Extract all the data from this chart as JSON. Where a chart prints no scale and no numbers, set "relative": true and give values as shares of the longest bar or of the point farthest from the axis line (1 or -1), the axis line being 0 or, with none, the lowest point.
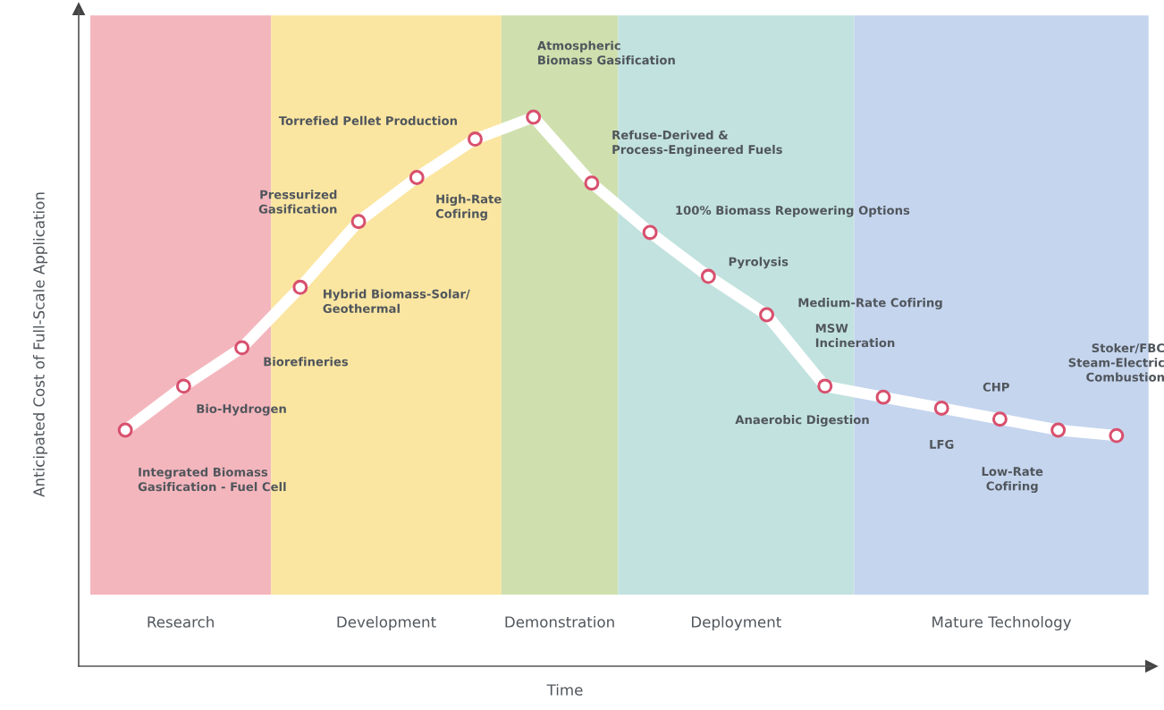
{
  "chart_data": {
    "type": "line",
    "relative": true,
    "xlabel": "Time",
    "ylabel": "Anticipated Cost of Full-Scale Application",
    "marker": "circle",
    "categories": [
      null,
      null,
      null,
      null,
      null,
      null,
      null,
      null,
      null,
      null,
      null,
      null,
      null,
      null,
      null,
      null,
      null,
      null
    ],
    "series": [
      {
        "color": "#ffffff",
        "values": [
          0.43,
          0.51,
          0.58,
          0.69,
          0.81,
          0.89,
          0.96,
          1,
          0.88,
          0.79,
          0.71,
          0.64,
          0.51,
          0.49,
          0.47,
          0.45,
          0.43,
          0.42
        ]
      }
    ],
    "annotations": [
      "Integrated Biomass\nGasification - Fuel Cell",
      "Bio-Hydrogen",
      "Biorefineries",
      "Hybrid Biomass-Solar/\nGeothermal",
      "Pressurized\nGasification",
      "High-Rate\nCofiring",
      "Torrefied Pellet Production",
      "Atmospheric\nBiomass Gasification",
      "Refuse-Derived &\nProcess-Engineered Fuels",
      "100% Biomass Repowering Options",
      "Pyrolysis",
      "Medium-Rate Cofiring",
      "MSW\nIncineration",
      "Anaerobic Digestion",
      "LFG",
      "CHP",
      "Low-Rate\nCofiring",
      "Stoker/FBC\nSteam-Electric\nCombustion",
      "Research",
      "Development",
      "Demonstration",
      "Deployment",
      "Mature Technology"
    ]
  }
}
